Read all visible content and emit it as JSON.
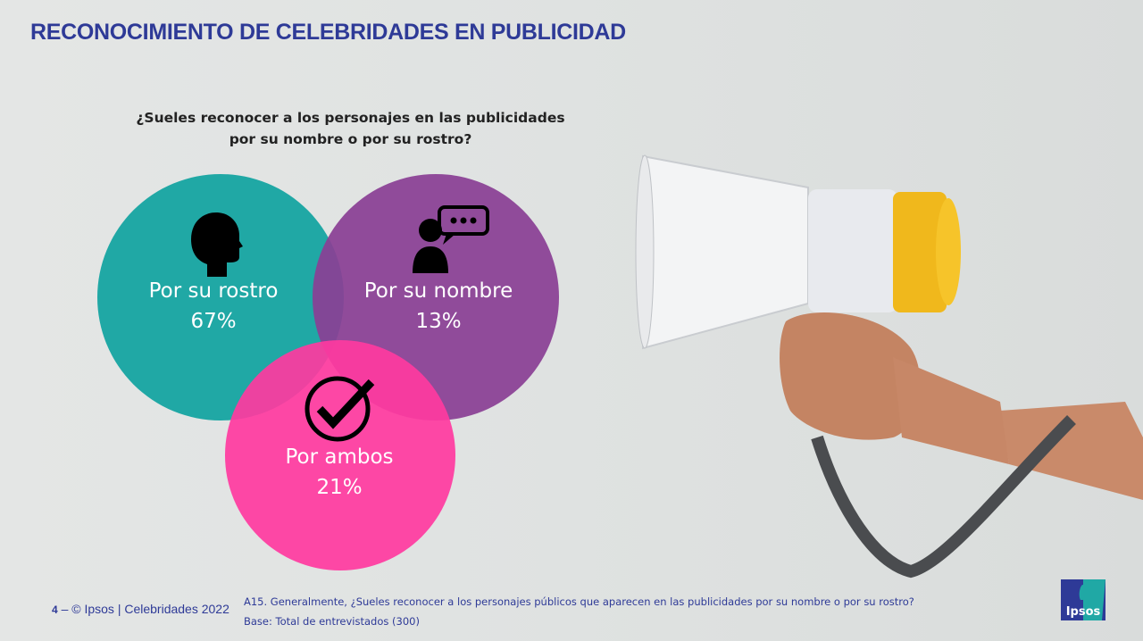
{
  "title": "RECONOCIMIENTO DE CELEBRIDADES EN PUBLICIDAD",
  "question": {
    "line1": "¿Sueles reconocer a los personajes en las publicidades",
    "line2": "por su nombre o por su rostro?"
  },
  "circles": [
    {
      "label": "Por su rostro",
      "value": "67%",
      "color": "#20a8a5",
      "icon": "head-silhouette-icon"
    },
    {
      "label": "Por su nombre",
      "value": "13%",
      "color": "#8a3f94",
      "icon": "person-speech-bubble-icon"
    },
    {
      "label": "Por ambos",
      "value": "21%",
      "color": "#ff399f",
      "icon": "checkmark-circle-icon"
    }
  ],
  "footer": {
    "page": "4",
    "copyright": "© Ipsos | Celebridades 2022",
    "note": "A15. Generalmente, ¿Sueles reconocer a los personajes públicos que aparecen en las publicidades por su nombre o por su rostro?",
    "base": "Base: Total de entrevistados (300)"
  },
  "logo": "Ipsos"
}
